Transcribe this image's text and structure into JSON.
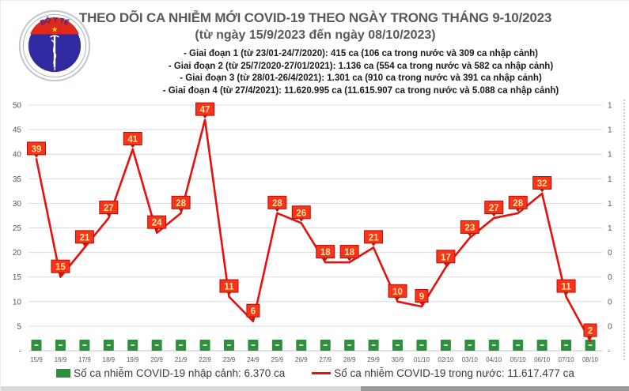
{
  "header": {
    "title": "THEO DÕI CA NHIỄM MỚI COVID-19 THEO NGÀY TRONG THÁNG 9-10/2023",
    "subtitle": "(từ ngày 15/9/2023 đến ngày 08/10/2023)",
    "logo": {
      "top_text": "BỘ Y TẾ",
      "bottom_text": "MINISTRY OF HEALTH"
    },
    "phases": [
      "- Giai đoạn 1 (từ 23/01-24/7/2020): 415 ca (106 ca trong nước và 309 ca nhập cảnh)",
      "- Giai đoạn 2 (từ 25/7/2020-27/01/2021): 1.136 ca (554 ca trong nước và 582 ca nhập cảnh)",
      "- Giai đoạn 3 (từ 28/01-26/4/2021): 1.301 ca (910 ca trong nước và 391 ca nhập cảnh)",
      "- Giai đoạn 4 (từ 27/4/2021): 11.620.995 ca (11.615.907 ca trong nước và 5.088 ca nhập cảnh)"
    ]
  },
  "chart_data": {
    "type": "line",
    "title": "",
    "xlabel": "",
    "ylabel": "",
    "grid": true,
    "legend_position": "bottom",
    "categories": [
      "15/9",
      "16/9",
      "17/9",
      "18/9",
      "19/9",
      "20/9",
      "21/9",
      "22/9",
      "23/9",
      "24/9",
      "25/9",
      "26/9",
      "27/9",
      "28/9",
      "29/9",
      "30/9",
      "01/10",
      "02/10",
      "03/10",
      "04/10",
      "05/10",
      "06/10",
      "07/10",
      "08/10"
    ],
    "series": [
      {
        "name": "Số ca nhiễm COVID-19 trong nước",
        "type": "line",
        "color": "#e8100c",
        "label_box_fill": "#fb3318",
        "label_box_border": "#b30f0b",
        "label_text_color": "#ffe9a2",
        "values": [
          39,
          15,
          21,
          27,
          41,
          24,
          28,
          47,
          11,
          6,
          28,
          26,
          18,
          18,
          21,
          10,
          9,
          17,
          23,
          27,
          28,
          32,
          11,
          2
        ]
      },
      {
        "name": "Số ca nhiễm COVID-19 nhập cảnh",
        "type": "bar",
        "color": "#2f8f3c",
        "bar_label": "-",
        "note": "small equal-height green squares, one per day, value labels shown as dashes"
      }
    ],
    "left_axis": {
      "min": 0,
      "max": 50,
      "step": 5,
      "ticks": [
        "50",
        "45",
        "40",
        "35",
        "30",
        "25",
        "20",
        "15",
        "10",
        "5",
        "-"
      ]
    },
    "right_axis": {
      "ticks": [
        "1",
        "1",
        "1",
        "1",
        "1",
        "1",
        "0",
        "0",
        "0",
        "0",
        "-"
      ]
    }
  },
  "legend": {
    "imported_label": "Số ca nhiễm COVID-19 nhập cảnh: 6.370 ca",
    "domestic_label": "Số ca nhiễm COVID-19 trong nước: 11.617.477 ca"
  },
  "colors": {
    "line_red": "#e8100c",
    "bar_green": "#2f8f3c",
    "title_gray": "#595959",
    "grid_gray": "#dcdcdc"
  }
}
